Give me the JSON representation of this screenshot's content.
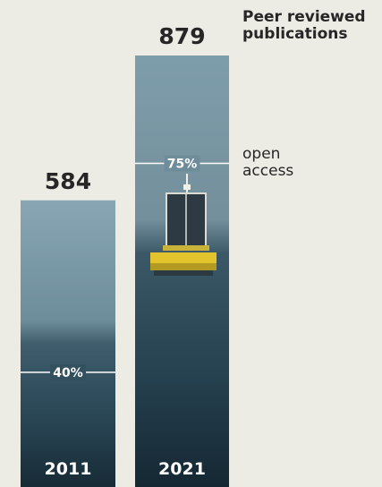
{
  "chart_data": {
    "type": "bar",
    "categories": [
      "2011",
      "2021"
    ],
    "series": [
      {
        "name": "Peer reviewed publications",
        "values": [
          584,
          879
        ]
      },
      {
        "name": "open access",
        "values": [
          40,
          75
        ],
        "unit": "%"
      }
    ],
    "open_access_labels": [
      "40%",
      "75%"
    ],
    "ylim": [
      0,
      879
    ],
    "grid": false,
    "legend_placement": "right",
    "colors": {
      "background": "#ecece4",
      "text": "#262626",
      "bar_sky": "#7e9eac",
      "bar_sea": "#2a4a5a",
      "buoy": "#e3c42c"
    }
  },
  "legend": {
    "publications_line1": "Peer reviewed",
    "publications_line2": "publications",
    "open_access_line1": "open",
    "open_access_line2": "access"
  }
}
